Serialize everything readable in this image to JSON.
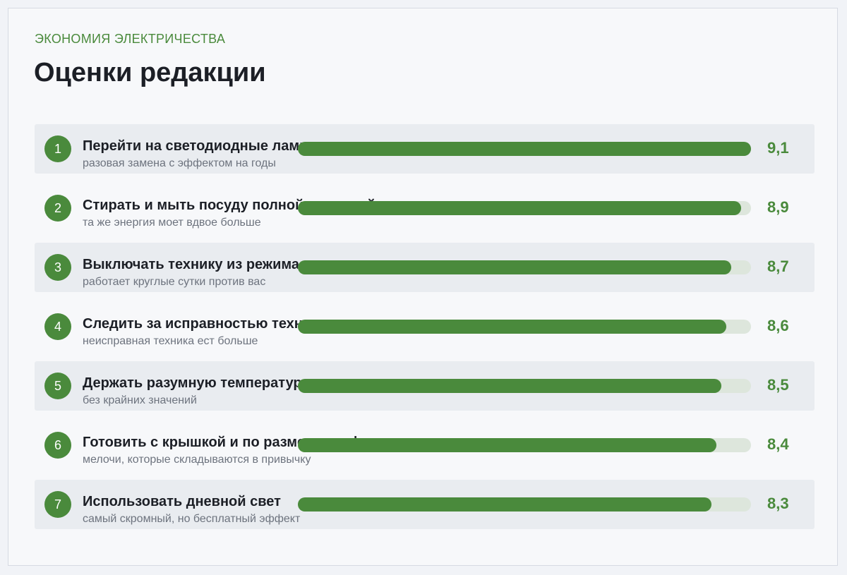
{
  "header": {
    "eyebrow": "ЭКОНОМИЯ ЭЛЕКТРИЧЕСТВА",
    "title": "Оценки редакции"
  },
  "colors": {
    "accent": "#4a8a3c",
    "track": "#dde6dc",
    "row_shade": "#e9ecf0"
  },
  "chart_data": {
    "type": "bar",
    "orientation": "horizontal",
    "title": "Оценки редакции",
    "xlim": [
      0,
      9.1
    ],
    "grid": false,
    "legend": "none",
    "items": [
      {
        "rank": "1",
        "label": "Перейти на светодиодные лампы",
        "sub": "разовая замена с эффектом на годы",
        "value": 9.1,
        "value_label": "9,1"
      },
      {
        "rank": "2",
        "label": "Стирать и мыть посуду полной загрузкой",
        "sub": "та же энергия моет вдвое больше",
        "value": 8.9,
        "value_label": "8,9"
      },
      {
        "rank": "3",
        "label": "Выключать технику из режима ожидания",
        "sub": "работает круглые сутки против вас",
        "value": 8.7,
        "value_label": "8,7"
      },
      {
        "rank": "4",
        "label": "Следить за исправностью техники",
        "sub": "неисправная техника ест больше",
        "value": 8.6,
        "value_label": "8,6"
      },
      {
        "rank": "5",
        "label": "Держать разумную температуру",
        "sub": "без крайних значений",
        "value": 8.5,
        "value_label": "8,5"
      },
      {
        "rank": "6",
        "label": "Готовить с крышкой и по размеру конфорки",
        "sub": "мелочи, которые складываются в привычку",
        "value": 8.4,
        "value_label": "8,4"
      },
      {
        "rank": "7",
        "label": "Использовать дневной свет",
        "sub": "самый скромный, но бесплатный эффект",
        "value": 8.3,
        "value_label": "8,3"
      }
    ]
  }
}
